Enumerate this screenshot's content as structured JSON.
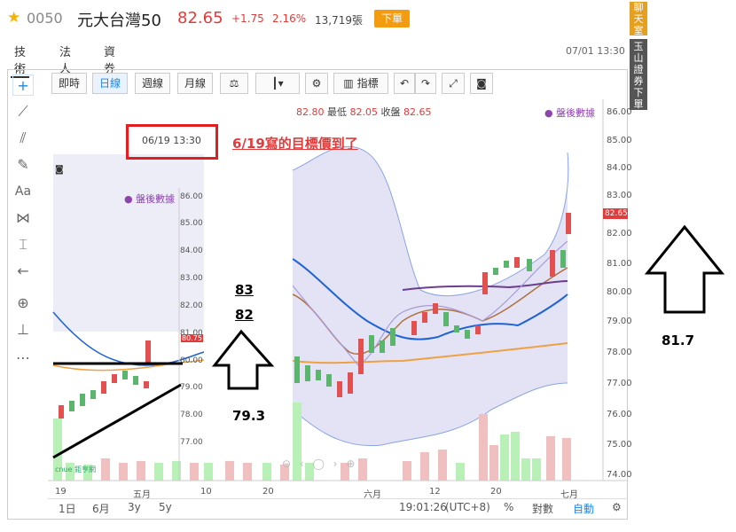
{
  "header": {
    "star": "★",
    "code": "0050",
    "name": "元大台灣50",
    "price": "82.65",
    "change": "+1.75",
    "change_pct": "2.16%",
    "volume": "13,719張",
    "order_btn": "下單",
    "datetime": "07/01 13:30"
  },
  "tabs": [
    "技術",
    "法人",
    "資券"
  ],
  "side": {
    "chat": "聊天室",
    "broker": "玉山證券下單"
  },
  "toolbar": {
    "intraday": "即時",
    "daily": "日線",
    "weekly": "週線",
    "monthly": "月線",
    "indicator": "指標"
  },
  "chart_info": {
    "high_label": "82.80",
    "low_label": "最低",
    "low": "82.05",
    "close_label": "收盤",
    "close": "82.65",
    "after_hours": "● 盤後數據",
    "last_price_tag": "82.65",
    "y_ticks": [
      "86.00",
      "85.00",
      "84.00",
      "83.00",
      "82.00",
      "81.00",
      "80.00",
      "79.00",
      "78.00",
      "77.00",
      "76.00",
      "75.00",
      "74.00"
    ],
    "x_ticks": [
      "六月",
      "12",
      "20",
      "七月"
    ]
  },
  "inset": {
    "datetime": "06/19 13:30",
    "after_hours": "● 盤後數據",
    "last_price_tag": "80.75",
    "y_ticks": [
      "86.00",
      "85.00",
      "84.00",
      "83.00",
      "82.00",
      "81.00",
      "80.00",
      "79.00",
      "78.00",
      "77.00"
    ],
    "x_ticks": [
      "19",
      "五月",
      "10",
      "20"
    ],
    "logo": "cnue 鉅亨網"
  },
  "annotations": {
    "note": "6/19寫的目標價到了",
    "t1": "83",
    "t2": "82",
    "t3": "79.3",
    "t4": "81.7"
  },
  "bottom": {
    "r1d": "1日",
    "r6m": "6月",
    "r3y": "3y",
    "r5y": "5y",
    "time": "19:01:26",
    "tz": "(UTC+8)",
    "pct": "%",
    "log": "對數",
    "auto": "自動"
  }
}
